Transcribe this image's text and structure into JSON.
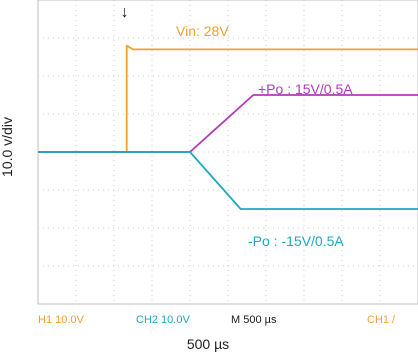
{
  "chart_data": {
    "type": "line",
    "title": "",
    "xlabel": "500 µs",
    "ylabel": "10.0 v/div",
    "grid": true,
    "xlim": [
      0,
      3000
    ],
    "ylim": [
      -40,
      40
    ],
    "trigger_marker": "↓",
    "series": [
      {
        "name": "Vin: 28V",
        "color": "#f2a12c",
        "x": [
          0,
          700,
          700,
          750,
          3000
        ],
        "y": [
          0,
          0,
          28,
          27,
          27
        ]
      },
      {
        "name": "+Po : 15V/0.5A",
        "color": "#b33ab9",
        "x": [
          0,
          1200,
          1700,
          3000
        ],
        "y": [
          0,
          0,
          15,
          15
        ]
      },
      {
        "name": "-Po : -15V/0.5A",
        "color": "#1ea9be",
        "x": [
          0,
          1200,
          1600,
          3000
        ],
        "y": [
          0,
          0,
          -15,
          -15
        ]
      }
    ],
    "status_bar": [
      {
        "text": "H1  10.0V",
        "color": "#f2a12c"
      },
      {
        "text": "CH2  10.0V",
        "color": "#1ea9be"
      },
      {
        "text": "M 500 µs",
        "color": "#1b1b1b"
      },
      {
        "text": "CH1 /",
        "color": "#f2a12c"
      }
    ]
  }
}
